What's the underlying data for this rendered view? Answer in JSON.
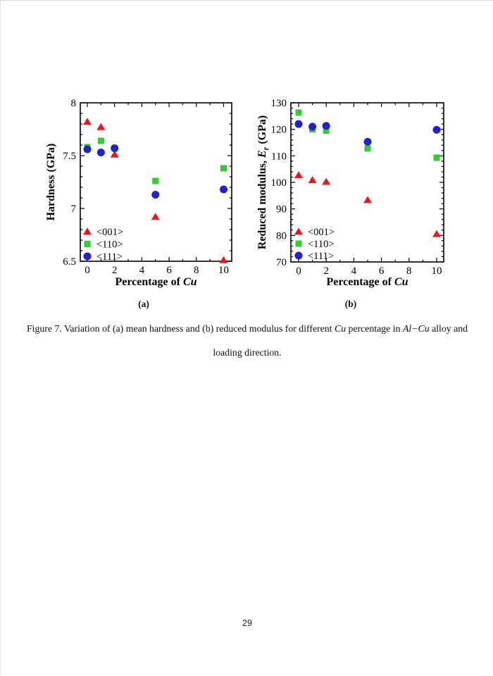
{
  "page": {
    "number": "29"
  },
  "figure": {
    "sublabels": [
      "(a)",
      "(b)"
    ],
    "caption": {
      "line1_parts": [
        {
          "t": "Figure 7. Variation of (a) mean hardness and (b) reduced modulus for different "
        },
        {
          "t": "Cu",
          "i": true
        },
        {
          "t": " percentage in "
        },
        {
          "t": "Al−Cu",
          "i": true
        },
        {
          "t": " alloy and"
        }
      ],
      "line2": "loading direction."
    }
  },
  "colors": {
    "red": "#e81919",
    "green": "#33cc33",
    "blue": "#2222cc",
    "axis": "#000000"
  },
  "chart_data": [
    {
      "id": "chart-a",
      "type": "scatter",
      "title": "",
      "xlabel_parts": [
        {
          "t": "Percentage of "
        },
        {
          "t": "Cu",
          "i": true
        }
      ],
      "ylabel_parts": [
        {
          "t": "Hardness (GPa)"
        }
      ],
      "xlim": [
        0,
        10
      ],
      "ylim": [
        6.5,
        8
      ],
      "xticks": [
        0,
        2,
        4,
        6,
        8,
        10
      ],
      "xtick_labels": [
        "0",
        "2",
        "4",
        "6",
        "8",
        "10"
      ],
      "yticks": [
        6.5,
        7,
        7.5,
        8
      ],
      "ytick_labels": [
        "6.5",
        "7",
        "7.5",
        "8"
      ],
      "xminor_step": 1,
      "yminor_step": 0.1,
      "grid": false,
      "legend_position": "lower-left",
      "series": [
        {
          "name": "<001>",
          "marker": "triangle",
          "color_key": "red",
          "points": [
            [
              0,
              7.82
            ],
            [
              1,
              7.77
            ],
            [
              2,
              7.51
            ],
            [
              5,
              6.92
            ],
            [
              10,
              6.51
            ]
          ]
        },
        {
          "name": "<110>",
          "marker": "square",
          "color_key": "green",
          "points": [
            [
              0,
              7.58
            ],
            [
              1,
              7.64
            ],
            [
              2,
              7.57
            ],
            [
              5,
              7.26
            ],
            [
              10,
              7.38
            ]
          ]
        },
        {
          "name": "<111>",
          "marker": "circle",
          "color_key": "blue",
          "points": [
            [
              0,
              7.56
            ],
            [
              1,
              7.53
            ],
            [
              2,
              7.57
            ],
            [
              5,
              7.13
            ],
            [
              10,
              7.18
            ]
          ]
        }
      ]
    },
    {
      "id": "chart-b",
      "type": "scatter",
      "title": "",
      "xlabel_parts": [
        {
          "t": "Percentage of "
        },
        {
          "t": "Cu",
          "i": true
        }
      ],
      "ylabel_parts": [
        {
          "t": "Reduced modulus, "
        },
        {
          "t": "E",
          "i": true
        },
        {
          "t": "r",
          "i": true,
          "sub": true
        },
        {
          "t": " (GPa)"
        }
      ],
      "xlim": [
        0,
        10
      ],
      "ylim": [
        70,
        130
      ],
      "xticks": [
        0,
        2,
        4,
        6,
        8,
        10
      ],
      "xtick_labels": [
        "0",
        "2",
        "4",
        "6",
        "8",
        "10"
      ],
      "yticks": [
        70,
        80,
        90,
        100,
        110,
        120,
        130
      ],
      "ytick_labels": [
        "70",
        "80",
        "90",
        "100",
        "110",
        "120",
        "130"
      ],
      "xminor_step": 1,
      "yminor_step": 2,
      "grid": false,
      "legend_position": "lower-left",
      "series": [
        {
          "name": "<001>",
          "marker": "triangle",
          "color_key": "red",
          "points": [
            [
              0,
              102.7
            ],
            [
              1,
              100.8
            ],
            [
              2,
              100.2
            ],
            [
              5,
              93.3
            ],
            [
              10,
              80.5
            ]
          ]
        },
        {
          "name": "<110>",
          "marker": "square",
          "color_key": "green",
          "points": [
            [
              0,
              126.3
            ],
            [
              1,
              120.0
            ],
            [
              2,
              119.5
            ],
            [
              5,
              112.8
            ],
            [
              10,
              109.3
            ]
          ]
        },
        {
          "name": "<111>",
          "marker": "circle",
          "color_key": "blue",
          "points": [
            [
              0,
              122.0
            ],
            [
              1,
              121.0
            ],
            [
              2,
              121.3
            ],
            [
              5,
              115.3
            ],
            [
              10,
              119.8
            ]
          ]
        }
      ]
    }
  ]
}
